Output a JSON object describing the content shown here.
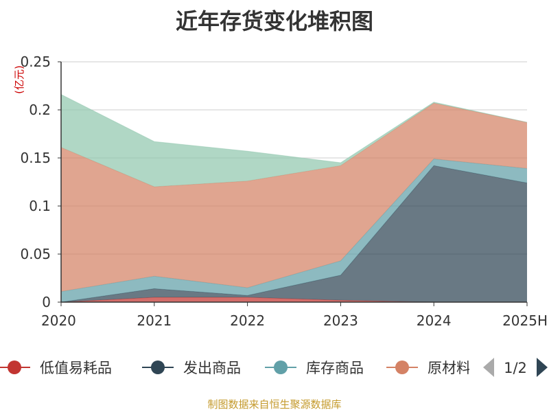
{
  "title": "近年存货变化堆积图",
  "source": "制图数据来自恒生聚源数据库",
  "chart_data": {
    "type": "area",
    "stacked": true,
    "categories": [
      "2020",
      "2021",
      "2022",
      "2023",
      "2024",
      "2025H"
    ],
    "ylabel": "(亿元)",
    "ylim": [
      0,
      0.25
    ],
    "yticks": [
      "0",
      "0.05",
      "0.1",
      "0.15",
      "0.2",
      "0.25"
    ],
    "grid": true,
    "legend_position": "bottom",
    "legend_page": "1/2",
    "series": [
      {
        "name": "低值易耗品",
        "color": "#c23531",
        "values": [
          0.0,
          0.005,
          0.005,
          0.002,
          0.0,
          0.0
        ]
      },
      {
        "name": "发出商品",
        "color": "#2f4554",
        "values": [
          0.0,
          0.009,
          0.002,
          0.026,
          0.142,
          0.124
        ]
      },
      {
        "name": "库存商品",
        "color": "#61a0a8",
        "values": [
          0.011,
          0.013,
          0.008,
          0.015,
          0.007,
          0.015
        ]
      },
      {
        "name": "原材料",
        "color": "#d48265",
        "values": [
          0.15,
          0.093,
          0.111,
          0.099,
          0.058,
          0.048
        ]
      },
      {
        "name": "",
        "color": "#91c7ae",
        "values": [
          0.055,
          0.047,
          0.031,
          0.003,
          0.001,
          0.0
        ]
      }
    ],
    "legend_items": [
      "低值易耗品",
      "发出商品",
      "库存商品",
      "原材料"
    ]
  }
}
